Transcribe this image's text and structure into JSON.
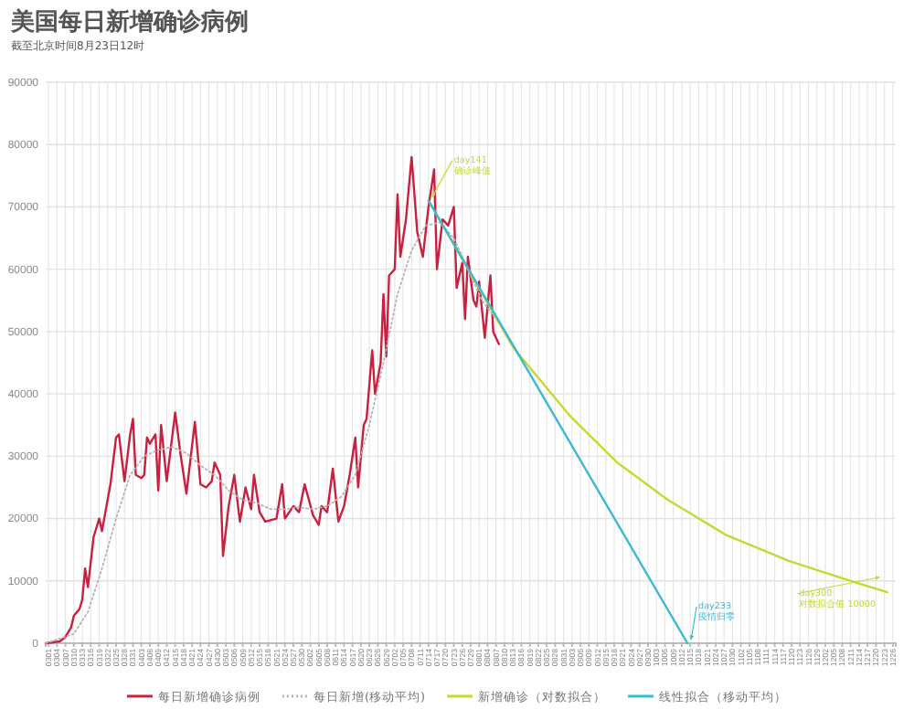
{
  "chart_data": {
    "type": "line",
    "title": "美国每日新增确诊病例",
    "subtitle": "截至北京时间8月23日12时",
    "xlim": [
      "--02-28",
      "--12-27"
    ],
    "ylim": [
      0,
      90000
    ],
    "yticks": [
      0,
      10000,
      20000,
      30000,
      40000,
      50000,
      60000,
      70000,
      80000,
      90000
    ],
    "xticks": [
      {
        "value": "--03-01",
        "label": "0301"
      },
      {
        "value": "--03-04",
        "label": "0304"
      },
      {
        "value": "--03-07",
        "label": "0307"
      },
      {
        "value": "--03-10",
        "label": "0310"
      },
      {
        "value": "--03-13",
        "label": "0313"
      },
      {
        "value": "--03-16",
        "label": "0316"
      },
      {
        "value": "--03-19",
        "label": "0319"
      },
      {
        "value": "--03-22",
        "label": "0322"
      },
      {
        "value": "--03-25",
        "label": "0325"
      },
      {
        "value": "--03-28",
        "label": "0328"
      },
      {
        "value": "--03-31",
        "label": "0331"
      },
      {
        "value": "--04-03",
        "label": "0403"
      },
      {
        "value": "--04-06",
        "label": "0406"
      },
      {
        "value": "--04-09",
        "label": "0409"
      },
      {
        "value": "--04-12",
        "label": "0412"
      },
      {
        "value": "--04-15",
        "label": "0415"
      },
      {
        "value": "--04-18",
        "label": "0418"
      },
      {
        "value": "--04-21",
        "label": "0421"
      },
      {
        "value": "--04-24",
        "label": "0424"
      },
      {
        "value": "--04-27",
        "label": "0427"
      },
      {
        "value": "--04-30",
        "label": "0430"
      },
      {
        "value": "--05-03",
        "label": "0503"
      },
      {
        "value": "--05-06",
        "label": "0506"
      },
      {
        "value": "--05-09",
        "label": "0509"
      },
      {
        "value": "--05-12",
        "label": "0512"
      },
      {
        "value": "--05-15",
        "label": "0515"
      },
      {
        "value": "--05-18",
        "label": "0518"
      },
      {
        "value": "--05-21",
        "label": "0521"
      },
      {
        "value": "--05-24",
        "label": "0524"
      },
      {
        "value": "--05-27",
        "label": "0527"
      },
      {
        "value": "--05-30",
        "label": "0530"
      },
      {
        "value": "--06-02",
        "label": "0602"
      },
      {
        "value": "--06-05",
        "label": "0605"
      },
      {
        "value": "--06-08",
        "label": "0608"
      },
      {
        "value": "--06-11",
        "label": "0611"
      },
      {
        "value": "--06-14",
        "label": "0614"
      },
      {
        "value": "--06-17",
        "label": "0617"
      },
      {
        "value": "--06-20",
        "label": "0620"
      },
      {
        "value": "--06-23",
        "label": "0623"
      },
      {
        "value": "--06-26",
        "label": "0626"
      },
      {
        "value": "--06-29",
        "label": "0629"
      },
      {
        "value": "--07-02",
        "label": "0702"
      },
      {
        "value": "--07-05",
        "label": "0705"
      },
      {
        "value": "--07-08",
        "label": "0708"
      },
      {
        "value": "--07-11",
        "label": "0711"
      },
      {
        "value": "--07-14",
        "label": "0714"
      },
      {
        "value": "--07-17",
        "label": "0717"
      },
      {
        "value": "--07-20",
        "label": "0720"
      },
      {
        "value": "--07-23",
        "label": "0723"
      },
      {
        "value": "--07-26",
        "label": "0726"
      },
      {
        "value": "--07-29",
        "label": "0729"
      },
      {
        "value": "--08-01",
        "label": "0801"
      },
      {
        "value": "--08-04",
        "label": "0804"
      },
      {
        "value": "--08-07",
        "label": "0807"
      },
      {
        "value": "--08-10",
        "label": "0810"
      },
      {
        "value": "--08-13",
        "label": "0813"
      },
      {
        "value": "--08-16",
        "label": "0816"
      },
      {
        "value": "--08-19",
        "label": "0819"
      },
      {
        "value": "--08-22",
        "label": "0822"
      },
      {
        "value": "--08-25",
        "label": "0825"
      },
      {
        "value": "--08-28",
        "label": "0828"
      },
      {
        "value": "--08-31",
        "label": "0831"
      },
      {
        "value": "--09-03",
        "label": "0903"
      },
      {
        "value": "--09-06",
        "label": "0906"
      },
      {
        "value": "--09-09",
        "label": "0909"
      },
      {
        "value": "--09-12",
        "label": "0912"
      },
      {
        "value": "--09-15",
        "label": "0915"
      },
      {
        "value": "--09-18",
        "label": "0918"
      },
      {
        "value": "--09-21",
        "label": "0921"
      },
      {
        "value": "--09-24",
        "label": "0924"
      },
      {
        "value": "--09-27",
        "label": "0927"
      },
      {
        "value": "--09-30",
        "label": "0930"
      },
      {
        "value": "--10-03",
        "label": "1003"
      },
      {
        "value": "--10-06",
        "label": "1006"
      },
      {
        "value": "--10-09",
        "label": "1009"
      },
      {
        "value": "--10-12",
        "label": "1012"
      },
      {
        "value": "--10-15",
        "label": "1015"
      },
      {
        "value": "--10-18",
        "label": "1018"
      },
      {
        "value": "--10-21",
        "label": "1021"
      },
      {
        "value": "--10-24",
        "label": "1024"
      },
      {
        "value": "--10-27",
        "label": "1027"
      },
      {
        "value": "--10-30",
        "label": "1030"
      },
      {
        "value": "--11-02",
        "label": "1102"
      },
      {
        "value": "--11-05",
        "label": "1105"
      },
      {
        "value": "--11-08",
        "label": "1108"
      },
      {
        "value": "--11-11",
        "label": "1111"
      },
      {
        "value": "--11-14",
        "label": "1114"
      },
      {
        "value": "--11-17",
        "label": "1117"
      },
      {
        "value": "--11-20",
        "label": "1120"
      },
      {
        "value": "--11-23",
        "label": "1123"
      },
      {
        "value": "--11-26",
        "label": "1126"
      },
      {
        "value": "--11-29",
        "label": "1129"
      },
      {
        "value": "--12-02",
        "label": "1202"
      },
      {
        "value": "--12-05",
        "label": "1205"
      },
      {
        "value": "--12-08",
        "label": "1208"
      },
      {
        "value": "--12-11",
        "label": "1211"
      },
      {
        "value": "--12-14",
        "label": "1214"
      },
      {
        "value": "--12-17",
        "label": "1217"
      },
      {
        "value": "--12-20",
        "label": "1220"
      },
      {
        "value": "--12-23",
        "label": "1223"
      },
      {
        "value": "--12-26",
        "label": "1226"
      }
    ],
    "grid": true,
    "legend": "bottom",
    "marker": "none",
    "series": [
      {
        "name": "每日新增确诊病例",
        "color": "#c8203e",
        "line_style": "solid",
        "x": [
          "--02-28",
          "--03-05",
          "--03-07",
          "--03-09",
          "--03-10",
          "--03-12",
          "--03-13",
          "--03-14",
          "--03-15",
          "--03-17",
          "--03-19",
          "--03-20",
          "--03-22",
          "--03-23",
          "--03-25",
          "--03-26",
          "--03-28",
          "--03-30",
          "--03-31",
          "--04-01",
          "--04-03",
          "--04-04",
          "--04-05",
          "--04-06",
          "--04-08",
          "--04-09",
          "--04-10",
          "--04-12",
          "--04-15",
          "--04-17",
          "--04-19",
          "--04-22",
          "--04-24",
          "--04-26",
          "--04-28",
          "--04-29",
          "--05-01",
          "--05-02",
          "--05-04",
          "--05-06",
          "--05-08",
          "--05-10",
          "--05-12",
          "--05-13",
          "--05-15",
          "--05-17",
          "--05-21",
          "--05-23",
          "--05-24",
          "--05-27",
          "--05-29",
          "--05-31",
          "--06-03",
          "--06-05",
          "--06-06",
          "--06-08",
          "--06-10",
          "--06-12",
          "--06-14",
          "--06-16",
          "--06-18",
          "--06-19",
          "--06-21",
          "--06-22",
          "--06-24",
          "--06-25",
          "--06-27",
          "--06-28",
          "--06-29",
          "--06-30",
          "--07-02",
          "--07-03",
          "--07-04",
          "--07-06",
          "--07-08",
          "--07-10",
          "--07-12",
          "--07-14",
          "--07-16",
          "--07-17",
          "--07-19",
          "--07-21",
          "--07-23",
          "--07-24",
          "--07-26",
          "--07-27",
          "--07-28",
          "--07-30",
          "--07-31",
          "--08-01",
          "--08-03",
          "--08-05",
          "--08-06",
          "--08-08"
        ],
        "values": [
          0,
          300,
          1000,
          2500,
          4400,
          5500,
          7000,
          12000,
          9000,
          17000,
          20000,
          18000,
          23000,
          25500,
          33000,
          33500,
          26000,
          33500,
          36000,
          27000,
          26500,
          27000,
          33000,
          32000,
          33500,
          24500,
          35000,
          26000,
          37000,
          30000,
          24000,
          35500,
          25500,
          25000,
          26000,
          29000,
          27000,
          14000,
          22000,
          27000,
          19500,
          25000,
          21500,
          27000,
          21000,
          19500,
          20000,
          25500,
          20000,
          22000,
          21000,
          25500,
          20500,
          19000,
          22000,
          21000,
          28000,
          19500,
          22000,
          27000,
          33000,
          25000,
          35000,
          36000,
          47000,
          40000,
          45000,
          56000,
          46000,
          59000,
          60000,
          72000,
          62000,
          68000,
          78000,
          66000,
          62000,
          70000,
          76000,
          60000,
          68000,
          67000,
          70000,
          57000,
          61000,
          52000,
          62000,
          55000,
          54000,
          58000,
          49000,
          59000,
          50000,
          48000
        ]
      },
      {
        "name": "每日新增(移动平均)",
        "color": "#b5b5b5",
        "line_style": "dotted",
        "x": [
          "--02-28",
          "--03-10",
          "--03-15",
          "--03-20",
          "--03-25",
          "--03-30",
          "--04-04",
          "--04-09",
          "--04-14",
          "--04-19",
          "--04-24",
          "--04-29",
          "--05-04",
          "--05-09",
          "--05-14",
          "--05-19",
          "--05-24",
          "--05-29",
          "--06-03",
          "--06-08",
          "--06-13",
          "--06-18",
          "--06-23",
          "--06-28",
          "--07-03",
          "--07-08",
          "--07-13",
          "--07-18",
          "--07-23",
          "--07-28",
          "--08-02",
          "--08-07"
        ],
        "values": [
          0,
          1500,
          5000,
          12000,
          20000,
          27000,
          30000,
          31000,
          31500,
          30500,
          28500,
          27000,
          24500,
          23000,
          22500,
          21500,
          21500,
          21800,
          21500,
          22000,
          23500,
          27000,
          35000,
          45000,
          56000,
          63000,
          67000,
          67500,
          65000,
          60000,
          55000,
          52000
        ]
      },
      {
        "name": "新增确诊（对数拟合）",
        "color": "#c5d931",
        "line_style": "solid",
        "x": [
          "--07-14",
          "--08-13",
          "--09-02",
          "--09-19",
          "--10-07",
          "--10-28",
          "--11-19",
          "--12-11",
          "--12-24"
        ],
        "values": [
          71000,
          47500,
          36600,
          29000,
          23000,
          17300,
          13200,
          10000,
          8200
        ]
      },
      {
        "name": "线性拟合（移动平均）",
        "color": "#3bb8d6",
        "line_style": "solid",
        "x": [
          "--07-14",
          "--10-14"
        ],
        "values": [
          71000,
          0
        ]
      }
    ],
    "annotations": [
      {
        "text": "day141\n确诊峰值",
        "x": "--07-14",
        "y": 71000
      },
      {
        "text": "day233\n疫情归零",
        "x": "--10-14",
        "y": 0
      },
      {
        "text": "day300\n对数拟合值 10000",
        "x": "--12-20",
        "y": 10000
      }
    ]
  }
}
